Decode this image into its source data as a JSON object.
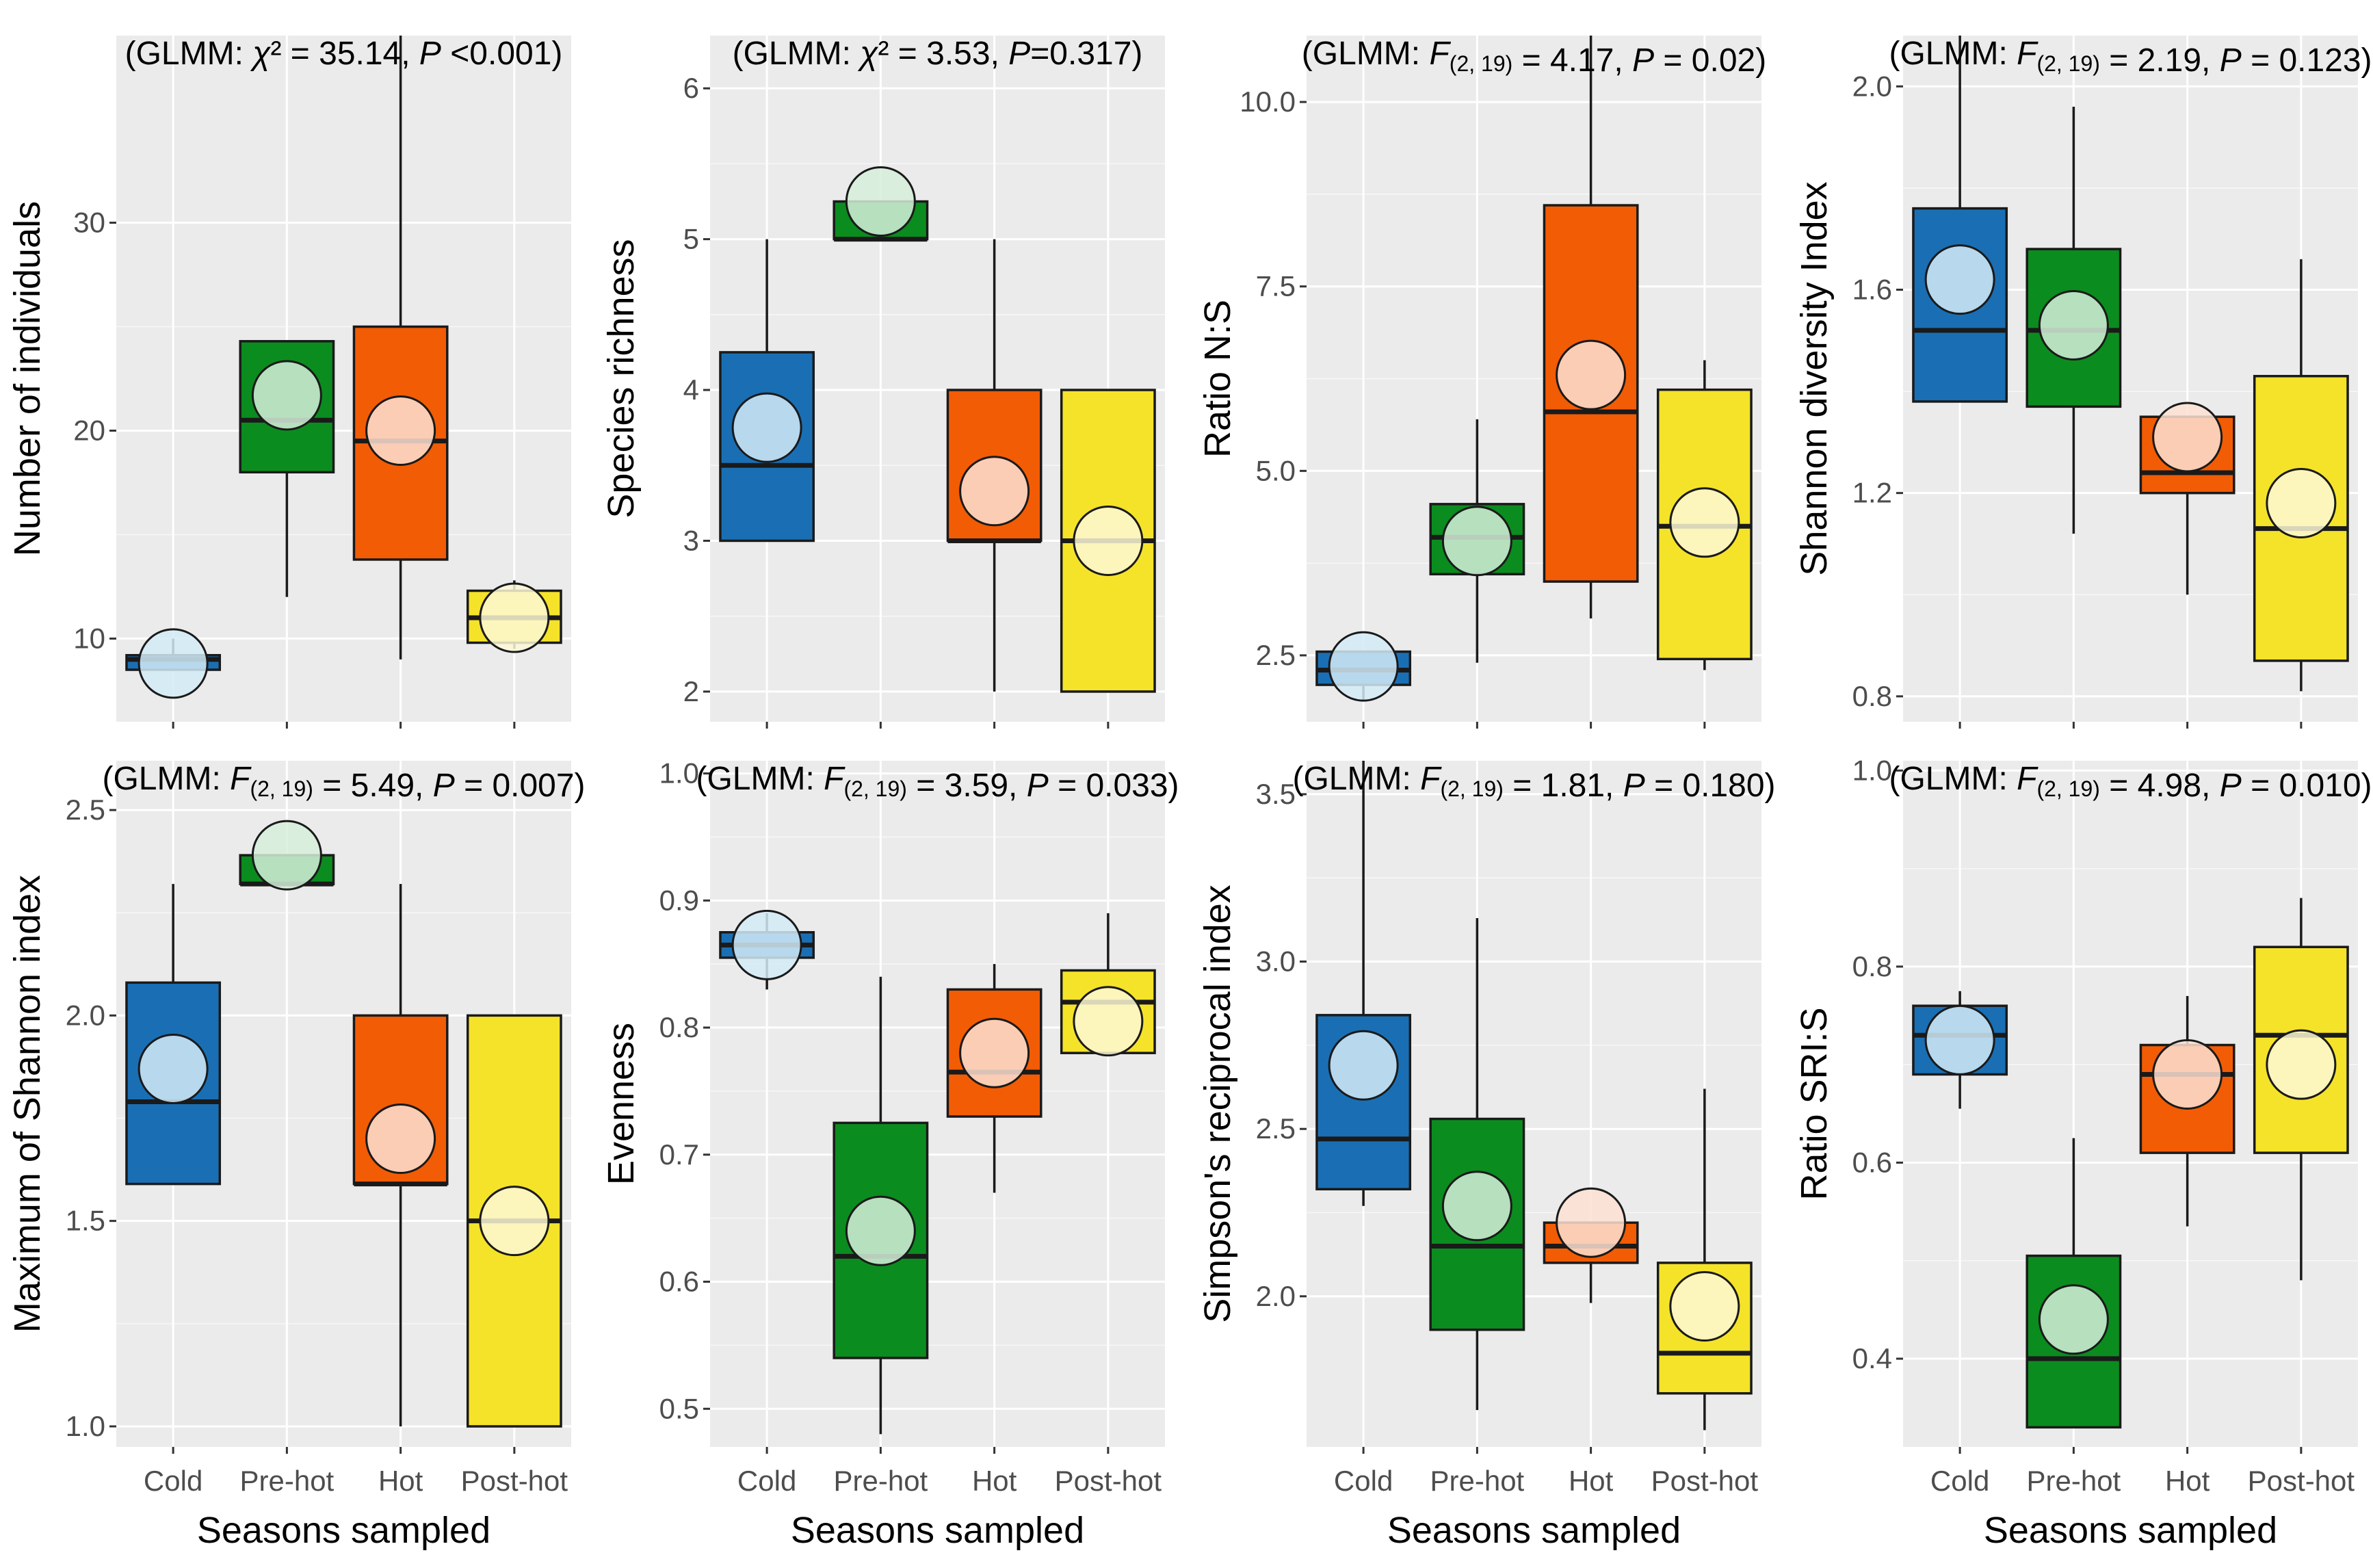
{
  "colors": {
    "Cold": "#1a6fb4",
    "Pre-hot": "#0b8c1f",
    "Hot": "#f25c05",
    "Post-hot": "#f5e32a",
    "Cold_mean": "#d4ebf7",
    "Pre-hot_mean": "#d6efdb",
    "Hot_mean": "#fde0d3",
    "Post-hot_mean": "#fdf8d6"
  },
  "chart_data": [
    {
      "type": "boxplot",
      "ylabel": "Number of individuals",
      "xlabel": "",
      "annotation": "(GLMM: χ² = 35.14, P <0.001)",
      "ylim": [
        6,
        39
      ],
      "yticks": [
        10,
        20,
        30
      ],
      "yticklabels": [
        "10",
        "20",
        "30"
      ],
      "categories": [
        "Cold",
        "Pre-hot",
        "Hot",
        "Post-hot"
      ],
      "boxes": [
        {
          "min": 8.5,
          "q1": 8.5,
          "median": 9,
          "q3": 9.2,
          "max": 10,
          "mean": 8.8
        },
        {
          "min": 12,
          "q1": 18,
          "median": 20.5,
          "q3": 24.3,
          "max": 24.3,
          "mean": 21.7
        },
        {
          "min": 9,
          "q1": 13.8,
          "median": 19.5,
          "q3": 25,
          "max": 39,
          "mean": 20
        },
        {
          "min": 9.5,
          "q1": 9.8,
          "median": 11,
          "q3": 12.3,
          "max": 12.8,
          "mean": 11
        }
      ]
    },
    {
      "type": "boxplot",
      "ylabel": "Species richness",
      "xlabel": "",
      "annotation": "(GLMM: χ² = 3.53, P=0.317)",
      "ylim": [
        1.8,
        6.35
      ],
      "yticks": [
        2,
        3,
        4,
        5,
        6
      ],
      "yticklabels": [
        "2",
        "3",
        "4",
        "5",
        "6"
      ],
      "categories": [
        "Cold",
        "Pre-hot",
        "Hot",
        "Post-hot"
      ],
      "boxes": [
        {
          "min": 3,
          "q1": 3,
          "median": 3.5,
          "q3": 4.25,
          "max": 5,
          "mean": 3.75
        },
        {
          "min": 5,
          "q1": 5,
          "median": 5,
          "q3": 5.25,
          "max": 5.25,
          "mean": 5.25
        },
        {
          "min": 2,
          "q1": 3,
          "median": 3,
          "q3": 4,
          "max": 5,
          "mean": 3.33
        },
        {
          "min": 2,
          "q1": 2,
          "median": 3,
          "q3": 4,
          "max": 4,
          "mean": 3
        }
      ]
    },
    {
      "type": "boxplot",
      "ylabel": "Ratio N:S",
      "xlabel": "",
      "annotation": "(GLMM: F(2, 19) = 4.17, P = 0.02)",
      "ylim": [
        1.6,
        10.9
      ],
      "yticks": [
        2.5,
        5.0,
        7.5,
        10.0
      ],
      "yticklabels": [
        "2.5",
        "5.0",
        "7.5",
        "10.0"
      ],
      "categories": [
        "Cold",
        "Pre-hot",
        "Hot",
        "Post-hot"
      ],
      "boxes": [
        {
          "min": 1.9,
          "q1": 2.1,
          "median": 2.3,
          "q3": 2.55,
          "max": 2.55,
          "mean": 2.35
        },
        {
          "min": 2.4,
          "q1": 3.6,
          "median": 4.1,
          "q3": 4.55,
          "max": 5.7,
          "mean": 4.05
        },
        {
          "min": 3,
          "q1": 3.5,
          "median": 5.8,
          "q3": 8.6,
          "max": 10.9,
          "mean": 6.3
        },
        {
          "min": 2.3,
          "q1": 2.45,
          "median": 4.25,
          "q3": 6.1,
          "max": 6.5,
          "mean": 4.3
        }
      ]
    },
    {
      "type": "boxplot",
      "ylabel": "Shannon diversity Index",
      "xlabel": "",
      "annotation": "(GLMM: F(2, 19) = 2.19, P = 0.123)",
      "ylim": [
        0.75,
        2.1
      ],
      "yticks": [
        0.8,
        1.2,
        1.6,
        2.0
      ],
      "yticklabels": [
        "0.8",
        "1.2",
        "1.6",
        "2.0"
      ],
      "categories": [
        "Cold",
        "Pre-hot",
        "Hot",
        "Post-hot"
      ],
      "boxes": [
        {
          "min": 1.38,
          "q1": 1.38,
          "median": 1.52,
          "q3": 1.76,
          "max": 2.1,
          "mean": 1.62
        },
        {
          "min": 1.12,
          "q1": 1.37,
          "median": 1.52,
          "q3": 1.68,
          "max": 1.96,
          "mean": 1.53
        },
        {
          "min": 1.0,
          "q1": 1.2,
          "median": 1.24,
          "q3": 1.35,
          "max": 1.35,
          "mean": 1.31
        },
        {
          "min": 0.81,
          "q1": 0.87,
          "median": 1.13,
          "q3": 1.43,
          "max": 1.66,
          "mean": 1.18
        }
      ]
    },
    {
      "type": "boxplot",
      "ylabel": "Maximum of Shannon index",
      "xlabel": "Seasons sampled",
      "annotation": "(GLMM: F(2, 19) = 5.49, P = 0.007)",
      "ylim": [
        0.95,
        2.62
      ],
      "yticks": [
        1.0,
        1.5,
        2.0,
        2.5
      ],
      "yticklabels": [
        "1.0",
        "1.5",
        "2.0",
        "2.5"
      ],
      "categories": [
        "Cold",
        "Pre-hot",
        "Hot",
        "Post-hot"
      ],
      "boxes": [
        {
          "min": 1.59,
          "q1": 1.59,
          "median": 1.79,
          "q3": 2.08,
          "max": 2.32,
          "mean": 1.87
        },
        {
          "min": 2.32,
          "q1": 2.32,
          "median": 2.32,
          "q3": 2.39,
          "max": 2.39,
          "mean": 2.39
        },
        {
          "min": 1.0,
          "q1": 1.59,
          "median": 1.59,
          "q3": 2.0,
          "max": 2.32,
          "mean": 1.7
        },
        {
          "min": 1.0,
          "q1": 1.0,
          "median": 1.5,
          "q3": 2.0,
          "max": 2.0,
          "mean": 1.5
        }
      ]
    },
    {
      "type": "boxplot",
      "ylabel": "Evenness",
      "xlabel": "Seasons sampled",
      "annotation": "(GLMM: F(2, 19) = 3.59, P = 0.033)",
      "ylim": [
        0.47,
        1.01
      ],
      "yticks": [
        0.5,
        0.6,
        0.7,
        0.8,
        0.9,
        1.0
      ],
      "yticklabels": [
        "0.5",
        "0.6",
        "0.7",
        "0.8",
        "0.9",
        "1.0"
      ],
      "categories": [
        "Cold",
        "Pre-hot",
        "Hot",
        "Post-hot"
      ],
      "boxes": [
        {
          "min": 0.83,
          "q1": 0.855,
          "median": 0.865,
          "q3": 0.875,
          "max": 0.89,
          "mean": 0.865
        },
        {
          "min": 0.48,
          "q1": 0.54,
          "median": 0.62,
          "q3": 0.725,
          "max": 0.84,
          "mean": 0.64
        },
        {
          "min": 0.67,
          "q1": 0.73,
          "median": 0.765,
          "q3": 0.83,
          "max": 0.85,
          "mean": 0.78
        },
        {
          "min": 0.78,
          "q1": 0.78,
          "median": 0.82,
          "q3": 0.845,
          "max": 0.89,
          "mean": 0.805
        }
      ]
    },
    {
      "type": "boxplot",
      "ylabel": "Simpson's reciprocal index",
      "xlabel": "Seasons sampled",
      "annotation": "(GLMM: F(2, 19) = 1.81, P = 0.180)",
      "ylim": [
        1.55,
        3.6
      ],
      "yticks": [
        2.0,
        2.5,
        3.0,
        3.5
      ],
      "yticklabels": [
        "2.0",
        "2.5",
        "3.0",
        "3.5"
      ],
      "categories": [
        "Cold",
        "Pre-hot",
        "Hot",
        "Post-hot"
      ],
      "boxes": [
        {
          "min": 2.27,
          "q1": 2.32,
          "median": 2.47,
          "q3": 2.84,
          "max": 3.6,
          "mean": 2.69
        },
        {
          "min": 1.66,
          "q1": 1.9,
          "median": 2.15,
          "q3": 2.53,
          "max": 3.13,
          "mean": 2.27
        },
        {
          "min": 1.98,
          "q1": 2.1,
          "median": 2.15,
          "q3": 2.22,
          "max": 2.22,
          "mean": 2.22
        },
        {
          "min": 1.6,
          "q1": 1.71,
          "median": 1.83,
          "q3": 2.1,
          "max": 2.62,
          "mean": 1.97
        }
      ]
    },
    {
      "type": "boxplot",
      "ylabel": "Ratio SRI:S",
      "xlabel": "Seasons sampled",
      "annotation": "(GLMM: F(2, 19) = 4.98, P = 0.010)",
      "ylim": [
        0.31,
        1.01
      ],
      "yticks": [
        0.4,
        0.6,
        0.8,
        1.0
      ],
      "yticklabels": [
        "0.4",
        "0.6",
        "0.8",
        "1.0"
      ],
      "categories": [
        "Cold",
        "Pre-hot",
        "Hot",
        "Post-hot"
      ],
      "boxes": [
        {
          "min": 0.655,
          "q1": 0.69,
          "median": 0.73,
          "q3": 0.76,
          "max": 0.775,
          "mean": 0.725
        },
        {
          "min": 0.33,
          "q1": 0.33,
          "median": 0.4,
          "q3": 0.505,
          "max": 0.625,
          "mean": 0.44
        },
        {
          "min": 0.535,
          "q1": 0.61,
          "median": 0.69,
          "q3": 0.72,
          "max": 0.77,
          "mean": 0.69
        },
        {
          "min": 0.48,
          "q1": 0.61,
          "median": 0.73,
          "q3": 0.82,
          "max": 0.87,
          "mean": 0.7
        }
      ]
    }
  ]
}
